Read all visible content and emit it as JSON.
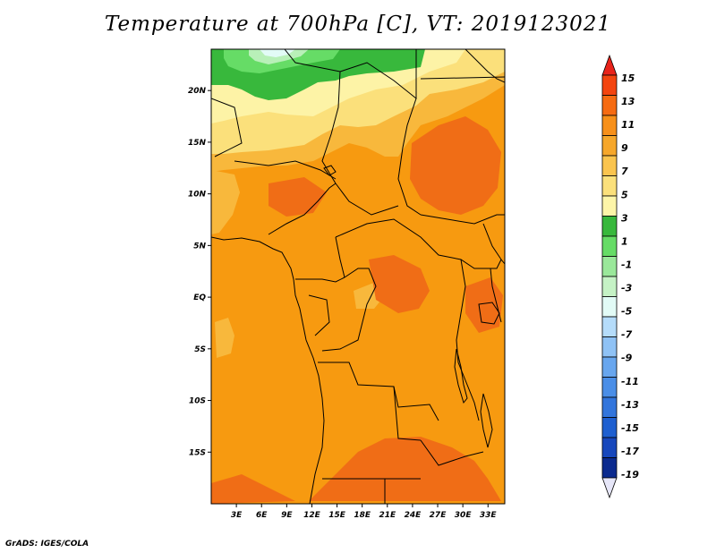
{
  "title": "Temperature at 700hPa [C], VT: 2019123021",
  "credit": "GrADS: IGES/COLA",
  "map": {
    "lon_range": [
      0,
      35
    ],
    "lat_range": [
      -20,
      24
    ],
    "lat_ticks": [
      {
        "value": 20,
        "label": "20N"
      },
      {
        "value": 15,
        "label": "15N"
      },
      {
        "value": 10,
        "label": "10N"
      },
      {
        "value": 5,
        "label": "5N"
      },
      {
        "value": 0,
        "label": "EQ"
      },
      {
        "value": -5,
        "label": "5S"
      },
      {
        "value": -10,
        "label": "10S"
      },
      {
        "value": -15,
        "label": "15S"
      }
    ],
    "lon_ticks": [
      {
        "value": 3,
        "label": "3E"
      },
      {
        "value": 6,
        "label": "6E"
      },
      {
        "value": 9,
        "label": "9E"
      },
      {
        "value": 12,
        "label": "12E"
      },
      {
        "value": 15,
        "label": "15E"
      },
      {
        "value": 18,
        "label": "18E"
      },
      {
        "value": 21,
        "label": "21E"
      },
      {
        "value": 24,
        "label": "24E"
      },
      {
        "value": 27,
        "label": "27E"
      },
      {
        "value": 30,
        "label": "30E"
      },
      {
        "value": 33,
        "label": "33E"
      }
    ]
  },
  "colorbar": {
    "labels": [
      "15",
      "13",
      "11",
      "9",
      "7",
      "5",
      "3",
      "1",
      "-1",
      "-3",
      "-5",
      "-7",
      "-9",
      "-11",
      "-13",
      "-15",
      "-17",
      "-19"
    ],
    "colors_top_to_bottom": [
      "#e8231a",
      "#f3440f",
      "#f66b12",
      "#f7901a",
      "#f6a72b",
      "#fac44e",
      "#fbe07b",
      "#fdf5a8",
      "#38b83c",
      "#66dc66",
      "#9ae89a",
      "#c5f2c5",
      "#e2fbf6",
      "#b5dcfa",
      "#8fc2f5",
      "#68a6ee",
      "#4a8ee7",
      "#3275dc",
      "#1e5fd0",
      "#1747bc",
      "#0b2a8e",
      "#e6e6f8"
    ]
  },
  "field_colors": {
    "orange_main": "#f79a10",
    "orange_dark": "#f06d16",
    "light_orange": "#f8b83c",
    "yellow": "#fbe07b",
    "pale_yellow": "#fdf3a6",
    "green": "#38b83c",
    "light_green": "#66dc66",
    "pale_green": "#b8f0b8",
    "pale_cyan": "#e2fbf6"
  }
}
